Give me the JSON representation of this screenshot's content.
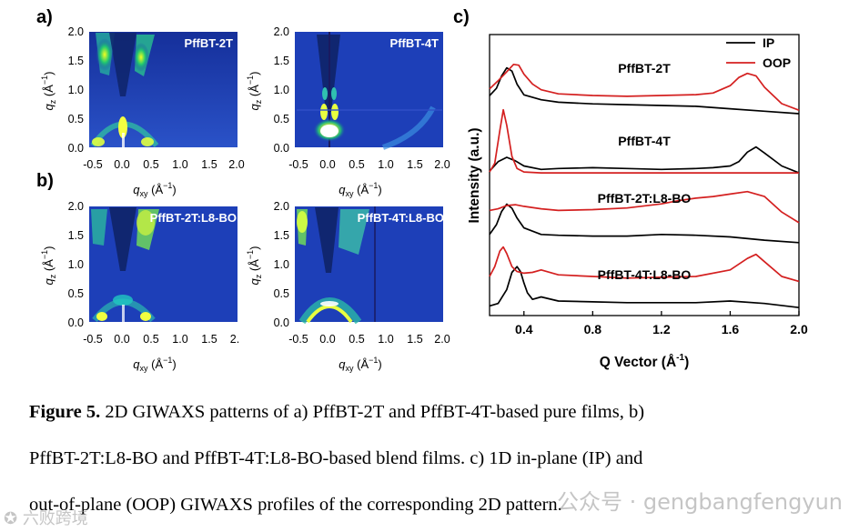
{
  "figure": {
    "panel_labels": [
      "a)",
      "b)",
      "c)"
    ],
    "giwaxs_panels": [
      {
        "title": "PffBT-2T",
        "x_ticks": [
          "-0.5",
          "0.0",
          "0.5",
          "1.0",
          "1.5",
          "2.0"
        ],
        "y_ticks": [
          "2.0",
          "1.5",
          "1.0",
          "0.5",
          "0.0"
        ]
      },
      {
        "title": "PffBT-4T",
        "x_ticks": [
          "-0.5",
          "0.0",
          "0.5",
          "1.0",
          "1.5",
          "2.0"
        ],
        "y_ticks": [
          "2.0",
          "1.5",
          "1.0",
          "0.5",
          "0.0"
        ]
      },
      {
        "title": "PffBT-2T:L8-BO",
        "x_ticks": [
          "-0.5",
          "0.0",
          "0.5",
          "1.0",
          "1.5",
          "2."
        ],
        "y_ticks": [
          "2.0",
          "1.5",
          "1.0",
          "0.5",
          "0.0"
        ]
      },
      {
        "title": "PffBT-4T:L8-BO",
        "x_ticks": [
          "-0.5",
          "0.0",
          "0.5",
          "1.0",
          "1.5",
          "2.0"
        ],
        "y_ticks": [
          "2.0",
          "1.5",
          "1.0",
          "0.5",
          "0.0"
        ]
      }
    ],
    "axis_labels": {
      "qz": "q",
      "qz_sub": "z",
      "qz_unit": "(Å",
      "qz_exp": "−1",
      "qxy": "q",
      "qxy_sub": "xy",
      "qxy_unit": "(Å",
      "qxy_exp": "−1"
    }
  },
  "chart_data": {
    "type": "line",
    "xlabel": "Q Vector (Å",
    "xlabel_exp": "-1",
    "xlabel_close": ")",
    "ylabel": "Intensity (a.u.)",
    "xlim": [
      0.2,
      2.0
    ],
    "x_ticks": [
      "0.4",
      "0.8",
      "1.2",
      "1.6",
      "2.0"
    ],
    "x_tick_values": [
      0.4,
      0.8,
      1.2,
      1.6,
      2.0
    ],
    "legend": [
      {
        "name": "IP",
        "color": "#000000"
      },
      {
        "name": "OOP",
        "color": "#d42020"
      }
    ],
    "legend_position": "top-right",
    "colors": {
      "IP": "#000000",
      "OOP": "#d42020"
    },
    "samples": [
      {
        "label": "PffBT-2T",
        "IP": {
          "x": [
            0.2,
            0.24,
            0.27,
            0.3,
            0.33,
            0.36,
            0.4,
            0.5,
            0.6,
            0.8,
            1.0,
            1.2,
            1.4,
            1.6,
            1.8,
            2.0
          ],
          "y": [
            1.1,
            1.55,
            2.3,
            2.8,
            2.6,
            1.8,
            1.15,
            0.85,
            0.7,
            0.6,
            0.55,
            0.5,
            0.45,
            0.3,
            0.15,
            0.0
          ]
        },
        "OOP": {
          "x": [
            0.2,
            0.25,
            0.3,
            0.34,
            0.37,
            0.4,
            0.45,
            0.5,
            0.6,
            0.8,
            1.0,
            1.2,
            1.4,
            1.5,
            1.6,
            1.65,
            1.7,
            1.75,
            1.8,
            1.9,
            2.0
          ],
          "y": [
            1.4,
            1.9,
            2.45,
            2.9,
            2.85,
            2.3,
            1.7,
            1.35,
            1.1,
            1.0,
            0.95,
            1.0,
            1.05,
            1.15,
            1.6,
            2.1,
            2.35,
            2.2,
            1.5,
            0.5,
            0.1
          ]
        }
      },
      {
        "label": "PffBT-4T",
        "IP": {
          "x": [
            0.2,
            0.25,
            0.3,
            0.35,
            0.4,
            0.5,
            0.6,
            0.8,
            1.0,
            1.2,
            1.4,
            1.5,
            1.6,
            1.65,
            1.7,
            1.75,
            1.8,
            1.9,
            2.0
          ],
          "y": [
            0.2,
            0.75,
            1.0,
            0.8,
            0.5,
            0.3,
            0.35,
            0.4,
            0.35,
            0.3,
            0.35,
            0.4,
            0.5,
            0.75,
            1.3,
            1.6,
            1.25,
            0.5,
            0.1
          ]
        },
        "OOP": {
          "x": [
            0.2,
            0.23,
            0.26,
            0.28,
            0.3,
            0.33,
            0.36,
            0.4,
            0.5,
            0.6,
            0.8,
            1.0,
            1.2,
            1.4,
            1.6,
            1.8,
            2.0
          ],
          "y": [
            0.1,
            0.6,
            2.5,
            3.7,
            2.8,
            1.0,
            0.3,
            0.1,
            0.05,
            0.05,
            0.05,
            0.05,
            0.05,
            0.05,
            0.05,
            0.05,
            0.05
          ]
        }
      },
      {
        "label": "PffBT-2T:L8-BO",
        "IP": {
          "x": [
            0.2,
            0.24,
            0.27,
            0.3,
            0.33,
            0.36,
            0.4,
            0.5,
            0.6,
            0.8,
            1.0,
            1.2,
            1.4,
            1.6,
            1.8,
            2.0
          ],
          "y": [
            0.9,
            1.5,
            2.3,
            2.75,
            2.5,
            1.9,
            1.3,
            0.9,
            0.85,
            0.8,
            0.8,
            0.9,
            0.85,
            0.75,
            0.55,
            0.4
          ]
        },
        "OOP": {
          "x": [
            0.2,
            0.25,
            0.3,
            0.35,
            0.4,
            0.5,
            0.6,
            0.8,
            1.0,
            1.2,
            1.3,
            1.4,
            1.5,
            1.6,
            1.7,
            1.8,
            1.9,
            2.0
          ],
          "y": [
            1.7,
            1.8,
            2.0,
            2.05,
            1.95,
            1.8,
            1.7,
            1.75,
            1.85,
            2.1,
            2.3,
            2.45,
            2.55,
            2.7,
            2.85,
            2.55,
            1.6,
            0.95
          ]
        }
      },
      {
        "label": "PffBT-4T:L8-BO",
        "IP": {
          "x": [
            0.2,
            0.25,
            0.3,
            0.33,
            0.36,
            0.38,
            0.4,
            0.42,
            0.45,
            0.5,
            0.6,
            0.8,
            1.0,
            1.2,
            1.4,
            1.6,
            1.8,
            2.0
          ],
          "y": [
            0.2,
            0.35,
            1.2,
            2.25,
            2.6,
            2.3,
            1.6,
            1.0,
            0.6,
            0.75,
            0.5,
            0.45,
            0.4,
            0.4,
            0.4,
            0.5,
            0.35,
            0.1
          ]
        },
        "OOP": {
          "x": [
            0.2,
            0.23,
            0.26,
            0.28,
            0.3,
            0.33,
            0.36,
            0.4,
            0.45,
            0.5,
            0.6,
            0.8,
            1.0,
            1.2,
            1.4,
            1.6,
            1.7,
            1.75,
            1.8,
            1.9,
            2.0
          ],
          "y": [
            1.0,
            1.6,
            2.55,
            2.8,
            2.4,
            1.6,
            1.3,
            1.2,
            1.25,
            1.4,
            1.1,
            1.0,
            0.9,
            0.95,
            1.0,
            1.4,
            2.1,
            2.35,
            1.9,
            1.0,
            0.7
          ]
        }
      }
    ]
  },
  "caption": {
    "label": "Figure 5.",
    "line1": " 2D GIWAXS patterns of a) PffBT-2T and PffBT-4T-based pure films, b)",
    "line2": "PffBT-2T:L8-BO and PffBT-4T:L8-BO-based blend films. c) 1D in-plane (IP) and",
    "line3": "out-of-plane (OOP) GIWAXS profiles of the corresponding 2D pattern."
  },
  "watermarks": {
    "wechat": "公众号 · gengbangfengyun",
    "site": "六败跨境"
  }
}
